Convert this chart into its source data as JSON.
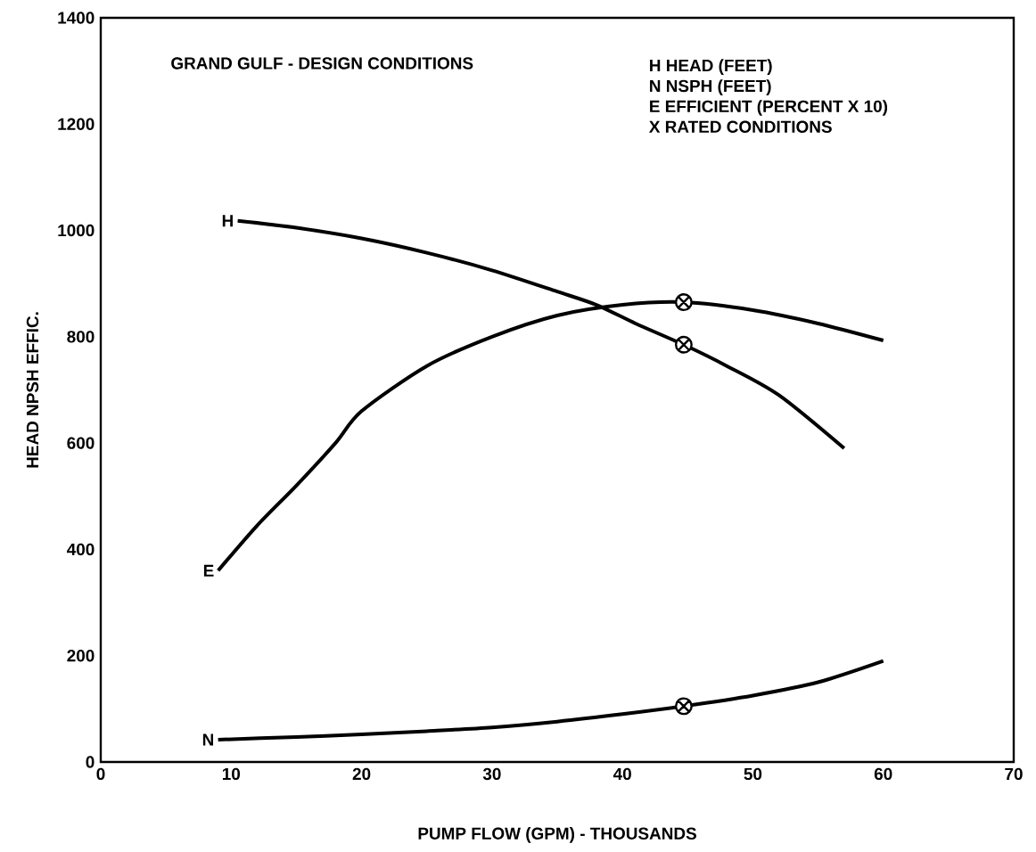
{
  "chart_data": {
    "type": "line",
    "title": "GRAND GULF - DESIGN CONDITIONS",
    "xlabel": "PUMP FLOW (GPM) - THOUSANDS",
    "ylabel": "HEAD NPSH EFFIC.",
    "xlim": [
      0,
      70
    ],
    "ylim": [
      0,
      1400
    ],
    "xticks": [
      0,
      10,
      20,
      30,
      40,
      50,
      60,
      70
    ],
    "yticks": [
      0,
      200,
      400,
      600,
      800,
      1000,
      1200,
      1400
    ],
    "grid": false,
    "marker": "none",
    "line_style": "solid",
    "annotations": [
      "H  HEAD (FEET)",
      "N  NSPH (FEET)",
      "E  EFFICIENT (PERCENT X 10)",
      "X  RATED CONDITIONS"
    ],
    "series": [
      {
        "name": "H",
        "color": "#000000",
        "x": [
          10.5,
          15,
          20,
          25,
          30,
          35,
          38,
          41,
          44.7,
          48,
          52,
          57
        ],
        "values": [
          1018,
          1005,
          985,
          958,
          925,
          885,
          860,
          825,
          785,
          745,
          690,
          590
        ]
      },
      {
        "name": "E",
        "color": "#000000",
        "x": [
          9,
          12,
          15,
          18,
          20,
          25,
          30,
          35,
          40,
          44.7,
          50,
          55,
          60
        ],
        "values": [
          360,
          445,
          520,
          600,
          660,
          745,
          800,
          840,
          860,
          865,
          850,
          825,
          793
        ]
      },
      {
        "name": "N",
        "color": "#000000",
        "x": [
          9,
          15,
          20,
          25,
          30,
          35,
          40,
          44.7,
          50,
          55,
          60
        ],
        "values": [
          42,
          47,
          52,
          58,
          65,
          76,
          90,
          105,
          125,
          150,
          190
        ]
      },
      {
        "type": "scatter",
        "marker": "cross",
        "color": "#000000",
        "x": [
          44.7,
          44.7,
          44.7
        ],
        "values": [
          865,
          785,
          105
        ]
      }
    ]
  }
}
